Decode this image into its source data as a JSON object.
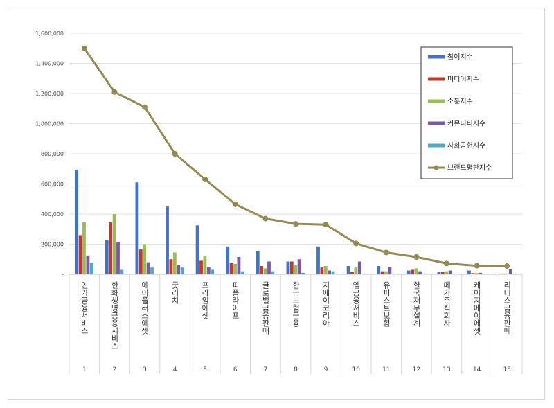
{
  "chart_data": {
    "type": "bar",
    "title": "",
    "xlabel": "",
    "ylabel": "",
    "ylim": [
      0,
      1600000
    ],
    "yticks": [
      "-",
      "200,000",
      "400,000",
      "600,000",
      "800,000",
      "1,000,000",
      "1,200,000",
      "1,400,000",
      "1,600,000"
    ],
    "grid": true,
    "legend_position": "top-right",
    "categories": [
      "인카금융서비스",
      "한화생명금융서비스",
      "에이플러스에셋",
      "굿리치",
      "프라임에셋",
      "피플라이프",
      "글로벌금융판매",
      "한국보험금융",
      "지에이코리아",
      "엠금융서비스",
      "유퍼스트보험",
      "한국재무설계",
      "메가주식회사",
      "케이지에이에셋",
      "리더스금융판매"
    ],
    "ranks": [
      "1",
      "2",
      "3",
      "4",
      "5",
      "6",
      "7",
      "8",
      "9",
      "10",
      "11",
      "12",
      "13",
      "14",
      "15"
    ],
    "series": [
      {
        "name": "참여지수",
        "type": "bar",
        "color": "#4472C4",
        "values": [
          695000,
          225000,
          610000,
          450000,
          325000,
          185000,
          155000,
          85000,
          185000,
          55000,
          55000,
          25000,
          15000,
          25000,
          5000
        ]
      },
      {
        "name": "미디어지수",
        "type": "bar",
        "color": "#C0392B",
        "values": [
          260000,
          345000,
          165000,
          100000,
          90000,
          75000,
          55000,
          85000,
          45000,
          15000,
          20000,
          30000,
          15000,
          8000,
          5000
        ]
      },
      {
        "name": "소통지수",
        "type": "bar",
        "color": "#9BBB59",
        "values": [
          345000,
          400000,
          200000,
          145000,
          125000,
          70000,
          40000,
          60000,
          55000,
          45000,
          20000,
          40000,
          20000,
          8000,
          5000
        ]
      },
      {
        "name": "커뮤니티지수",
        "type": "bar",
        "color": "#7B59A6",
        "values": [
          125000,
          215000,
          80000,
          60000,
          50000,
          115000,
          85000,
          100000,
          25000,
          85000,
          50000,
          20000,
          25000,
          10000,
          35000
        ]
      },
      {
        "name": "사회공헌지수",
        "type": "bar",
        "color": "#4BACC6",
        "values": [
          75000,
          30000,
          45000,
          45000,
          30000,
          20000,
          20000,
          10000,
          20000,
          5000,
          5000,
          5000,
          5000,
          5000,
          5000
        ]
      },
      {
        "name": "브랜드평판지수",
        "type": "line",
        "color": "#948A54",
        "values": [
          1500000,
          1210000,
          1110000,
          800000,
          630000,
          465000,
          370000,
          335000,
          330000,
          205000,
          145000,
          115000,
          72000,
          57000,
          55000
        ]
      }
    ]
  }
}
